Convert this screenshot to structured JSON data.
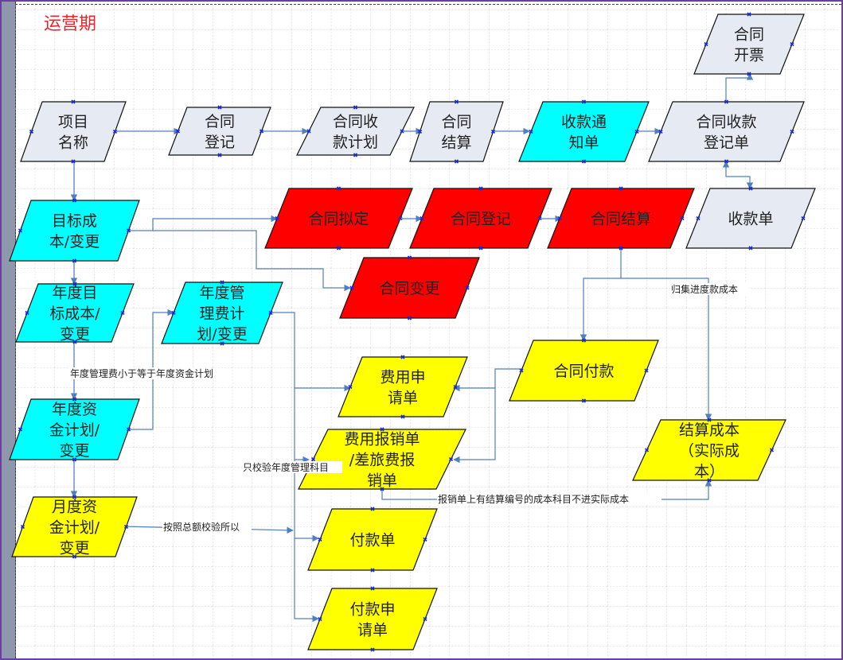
{
  "title": "运营期",
  "colors": {
    "gray": "#E6EAF3",
    "cyan": "#00FFFF",
    "red": "#FF0000",
    "yellow": "#FFFF00",
    "connector": "#4F7FBF",
    "connection_point": "#1A2BD8",
    "title": "#E8262B"
  },
  "shapes": {
    "project_name": {
      "lines": [
        "项目",
        "名称"
      ],
      "color": "gray"
    },
    "contract_register": {
      "lines": [
        "合同",
        "登记"
      ],
      "color": "gray"
    },
    "contract_receipt_plan": {
      "lines": [
        "合同收",
        "款计划"
      ],
      "color": "gray"
    },
    "contract_settlement": {
      "lines": [
        "合同",
        "结算"
      ],
      "color": "gray"
    },
    "receipt_notice": {
      "lines": [
        "收款通",
        "知单"
      ],
      "color": "cyan"
    },
    "contract_receipt_register": {
      "lines": [
        "合同收款",
        "登记单"
      ],
      "color": "gray"
    },
    "contract_invoice": {
      "lines": [
        "合同",
        "开票"
      ],
      "color": "gray"
    },
    "receipt_slip": {
      "lines": [
        "收款单"
      ],
      "color": "gray"
    },
    "target_cost": {
      "lines": [
        "目标成",
        "本/变更"
      ],
      "color": "cyan"
    },
    "contract_draft": {
      "lines": [
        "合同拟定"
      ],
      "color": "red"
    },
    "contract_register_red": {
      "lines": [
        "合同登记"
      ],
      "color": "red"
    },
    "contract_settlement_red": {
      "lines": [
        "合同结算"
      ],
      "color": "red"
    },
    "contract_change": {
      "lines": [
        "合同变更"
      ],
      "color": "red"
    },
    "annual_target_cost": {
      "lines": [
        "年度目",
        "标成本/",
        "变更"
      ],
      "color": "cyan"
    },
    "annual_mgmt_fee_plan": {
      "lines": [
        "年度管",
        "理费计",
        "划/变更"
      ],
      "color": "cyan"
    },
    "expense_request": {
      "lines": [
        "费用申",
        "请单"
      ],
      "color": "yellow"
    },
    "contract_payment": {
      "lines": [
        "合同付款"
      ],
      "color": "yellow"
    },
    "annual_fund_plan": {
      "lines": [
        "年度资",
        "金计划/",
        "变更"
      ],
      "color": "cyan"
    },
    "expense_reimbursement": {
      "lines": [
        "费用报销单",
        "/差旅费报",
        "销单"
      ],
      "color": "yellow"
    },
    "settlement_cost": {
      "lines": [
        "结算成本",
        "（实际成",
        "本）"
      ],
      "color": "yellow"
    },
    "monthly_fund_plan": {
      "lines": [
        "月度资",
        "金计划/",
        "变更"
      ],
      "color": "yellow"
    },
    "payment_slip": {
      "lines": [
        "付款单"
      ],
      "color": "yellow"
    },
    "payment_request": {
      "lines": [
        "付款申",
        "请单"
      ],
      "color": "yellow"
    }
  },
  "labels": {
    "annual_fee_rule": "年度管理费小于等于年度资金计划",
    "only_check_subject": "只校验年度管理科目",
    "check_by_total": "按照总额校验所以",
    "reimbursement_rule": "报销单上有结算编号的成本科目不进实际成本",
    "progress_cost": "归集进度款成本"
  }
}
